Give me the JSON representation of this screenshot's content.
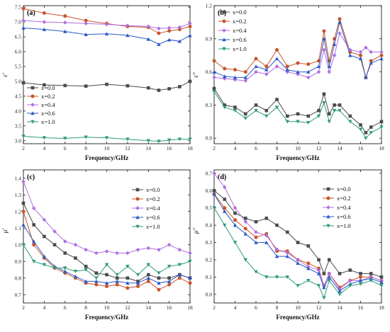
{
  "figure": {
    "series_names": [
      "x=0.0",
      "x=0.2",
      "x=0.4",
      "x=0.6",
      "x=1.0"
    ],
    "series_colors": [
      "#4a4a4a",
      "#c9542c",
      "#b06ee0",
      "#2c59c6",
      "#2f9a78"
    ],
    "series_markers": [
      "square",
      "circle",
      "diamond",
      "triangle-up",
      "triangle-down"
    ]
  },
  "chart_data": [
    {
      "type": "line",
      "panel_label": "(a)",
      "xlabel": "Frequency/GHz",
      "ylabel": "ε′",
      "xlim": [
        2,
        18
      ],
      "ylim": [
        2.9,
        7.55
      ],
      "xticks": [
        2,
        4,
        6,
        8,
        10,
        12,
        14,
        16,
        18
      ],
      "yticks": [
        3.0,
        3.5,
        4.0,
        4.5,
        5.0,
        5.5,
        6.0,
        6.5,
        7.0,
        7.5
      ],
      "legend_position": "center-left",
      "x": [
        2,
        4,
        6,
        8,
        10,
        12,
        14,
        15,
        16,
        17,
        18
      ],
      "series": [
        {
          "name": "x=0.0",
          "values": [
            4.95,
            4.88,
            4.86,
            4.84,
            4.9,
            4.85,
            4.78,
            4.7,
            4.75,
            4.82,
            5.0
          ]
        },
        {
          "name": "x=0.2",
          "values": [
            7.45,
            7.3,
            7.2,
            7.05,
            6.95,
            6.85,
            6.82,
            6.62,
            6.7,
            6.75,
            6.85
          ]
        },
        {
          "name": "x=0.4",
          "values": [
            7.05,
            7.0,
            6.98,
            6.95,
            6.92,
            6.88,
            6.85,
            6.78,
            6.8,
            6.82,
            6.95
          ]
        },
        {
          "name": "x=0.6",
          "values": [
            6.8,
            6.75,
            6.68,
            6.58,
            6.6,
            6.55,
            6.42,
            6.25,
            6.4,
            6.35,
            6.55
          ]
        },
        {
          "name": "x=1.0",
          "values": [
            3.15,
            3.1,
            3.08,
            3.12,
            3.1,
            3.05,
            3.0,
            2.98,
            3.02,
            3.05,
            3.05
          ]
        }
      ]
    },
    {
      "type": "line",
      "panel_label": "(b)",
      "xlabel": "Frequency/GHz",
      "ylabel": "ε″",
      "xlim": [
        2,
        18
      ],
      "ylim": [
        -0.05,
        1.2
      ],
      "xticks": [
        2,
        4,
        6,
        8,
        10,
        12,
        14,
        16,
        18
      ],
      "yticks": [
        0.0,
        0.3,
        0.6,
        0.9,
        1.2
      ],
      "legend_position": "top-left",
      "x": [
        2,
        3,
        4,
        5,
        6,
        7,
        8,
        9,
        10,
        11,
        12,
        12.5,
        13,
        13.5,
        14,
        15,
        16,
        16.5,
        17,
        18
      ],
      "series": [
        {
          "name": "x=0.0",
          "values": [
            0.45,
            0.3,
            0.28,
            0.22,
            0.3,
            0.25,
            0.35,
            0.2,
            0.22,
            0.2,
            0.25,
            0.4,
            0.22,
            0.3,
            0.3,
            0.2,
            0.12,
            0.05,
            0.1,
            0.15
          ]
        },
        {
          "name": "x=0.2",
          "values": [
            0.7,
            0.63,
            0.62,
            0.6,
            0.72,
            0.65,
            0.8,
            0.65,
            0.68,
            0.67,
            0.7,
            0.97,
            0.7,
            0.9,
            1.08,
            0.78,
            0.75,
            0.55,
            0.7,
            0.75
          ]
        },
        {
          "name": "x=0.4",
          "values": [
            0.55,
            0.54,
            0.53,
            0.52,
            0.6,
            0.58,
            0.65,
            0.6,
            0.58,
            0.55,
            0.6,
            0.8,
            0.6,
            0.75,
            0.95,
            0.8,
            0.78,
            0.82,
            0.78,
            0.78
          ]
        },
        {
          "name": "x=0.6",
          "values": [
            0.6,
            0.56,
            0.55,
            0.55,
            0.65,
            0.62,
            0.72,
            0.62,
            0.6,
            0.6,
            0.65,
            0.9,
            0.65,
            0.85,
            1.05,
            0.75,
            0.72,
            0.55,
            0.68,
            0.72
          ]
        },
        {
          "name": "x=1.0",
          "values": [
            0.42,
            0.28,
            0.25,
            0.18,
            0.25,
            0.2,
            0.28,
            0.15,
            0.15,
            0.14,
            0.2,
            0.32,
            0.15,
            0.25,
            0.25,
            0.15,
            0.08,
            0.0,
            0.05,
            0.1
          ]
        }
      ]
    },
    {
      "type": "line",
      "panel_label": "(c)",
      "xlabel": "Frequency/GHz",
      "ylabel": "μ′",
      "xlim": [
        2,
        18
      ],
      "ylim": [
        0.65,
        1.45
      ],
      "xticks": [
        2,
        4,
        6,
        8,
        10,
        12,
        14,
        16,
        18
      ],
      "yticks": [
        0.7,
        0.8,
        0.9,
        1.0,
        1.1,
        1.2,
        1.3,
        1.4
      ],
      "legend_position": "top-right",
      "x": [
        2,
        3,
        4,
        5,
        6,
        7,
        8,
        9,
        10,
        11,
        12,
        13,
        14,
        15,
        16,
        17,
        18
      ],
      "series": [
        {
          "name": "x=0.0",
          "values": [
            1.25,
            1.12,
            1.05,
            1.0,
            0.95,
            0.92,
            0.87,
            0.83,
            0.82,
            0.8,
            0.8,
            0.78,
            0.82,
            0.8,
            0.8,
            0.82,
            0.8
          ]
        },
        {
          "name": "x=0.2",
          "values": [
            1.2,
            1.0,
            0.92,
            0.86,
            0.83,
            0.8,
            0.77,
            0.76,
            0.75,
            0.76,
            0.74,
            0.75,
            0.78,
            0.73,
            0.76,
            0.8,
            0.77
          ]
        },
        {
          "name": "x=0.4",
          "values": [
            1.38,
            1.22,
            1.15,
            1.08,
            1.02,
            1.0,
            0.97,
            0.95,
            0.96,
            0.95,
            0.95,
            0.97,
            0.98,
            0.97,
            1.0,
            0.97,
            0.95
          ]
        },
        {
          "name": "x=0.6",
          "values": [
            1.12,
            1.02,
            0.93,
            0.87,
            0.84,
            0.81,
            0.78,
            0.78,
            0.77,
            0.78,
            0.77,
            0.77,
            0.8,
            0.77,
            0.78,
            0.82,
            0.8
          ]
        },
        {
          "name": "x=1.0",
          "values": [
            1.0,
            0.9,
            0.88,
            0.86,
            0.86,
            0.84,
            0.85,
            0.8,
            0.88,
            0.82,
            0.87,
            0.82,
            0.88,
            0.83,
            0.87,
            0.88,
            0.9
          ]
        }
      ]
    },
    {
      "type": "line",
      "panel_label": "(d)",
      "xlabel": "Frequency/GHz",
      "ylabel": "μ″",
      "xlim": [
        2,
        18
      ],
      "ylim": [
        -0.05,
        0.72
      ],
      "xticks": [
        2,
        4,
        6,
        8,
        10,
        12,
        14,
        16,
        18
      ],
      "yticks": [
        0.0,
        0.1,
        0.2,
        0.3,
        0.4,
        0.5,
        0.6,
        0.7
      ],
      "legend_position": "top-right",
      "x": [
        2,
        3,
        4,
        5,
        6,
        7,
        8,
        9,
        10,
        11,
        12,
        12.5,
        13,
        14,
        15,
        16,
        17,
        18
      ],
      "series": [
        {
          "name": "x=0.0",
          "values": [
            0.6,
            0.55,
            0.47,
            0.44,
            0.42,
            0.44,
            0.4,
            0.36,
            0.3,
            0.28,
            0.2,
            0.12,
            0.2,
            0.12,
            0.14,
            0.12,
            0.12,
            0.1
          ]
        },
        {
          "name": "x=0.2",
          "values": [
            0.58,
            0.5,
            0.43,
            0.38,
            0.33,
            0.35,
            0.25,
            0.25,
            0.2,
            0.18,
            0.15,
            0.05,
            0.12,
            0.04,
            0.08,
            0.1,
            0.1,
            0.08
          ]
        },
        {
          "name": "x=0.4",
          "values": [
            0.7,
            0.62,
            0.5,
            0.42,
            0.36,
            0.34,
            0.26,
            0.24,
            0.2,
            0.16,
            0.14,
            0.05,
            0.12,
            0.03,
            0.08,
            0.08,
            0.1,
            0.08
          ]
        },
        {
          "name": "x=0.6",
          "values": [
            0.58,
            0.48,
            0.4,
            0.35,
            0.3,
            0.3,
            0.22,
            0.22,
            0.18,
            0.15,
            0.12,
            0.04,
            0.1,
            0.02,
            0.06,
            0.08,
            0.09,
            0.07
          ]
        },
        {
          "name": "x=1.0",
          "values": [
            0.5,
            0.4,
            0.3,
            0.2,
            0.13,
            0.1,
            0.1,
            0.1,
            0.05,
            0.08,
            0.05,
            -0.02,
            0.08,
            0.0,
            0.05,
            0.06,
            0.08,
            0.05
          ]
        }
      ]
    }
  ]
}
